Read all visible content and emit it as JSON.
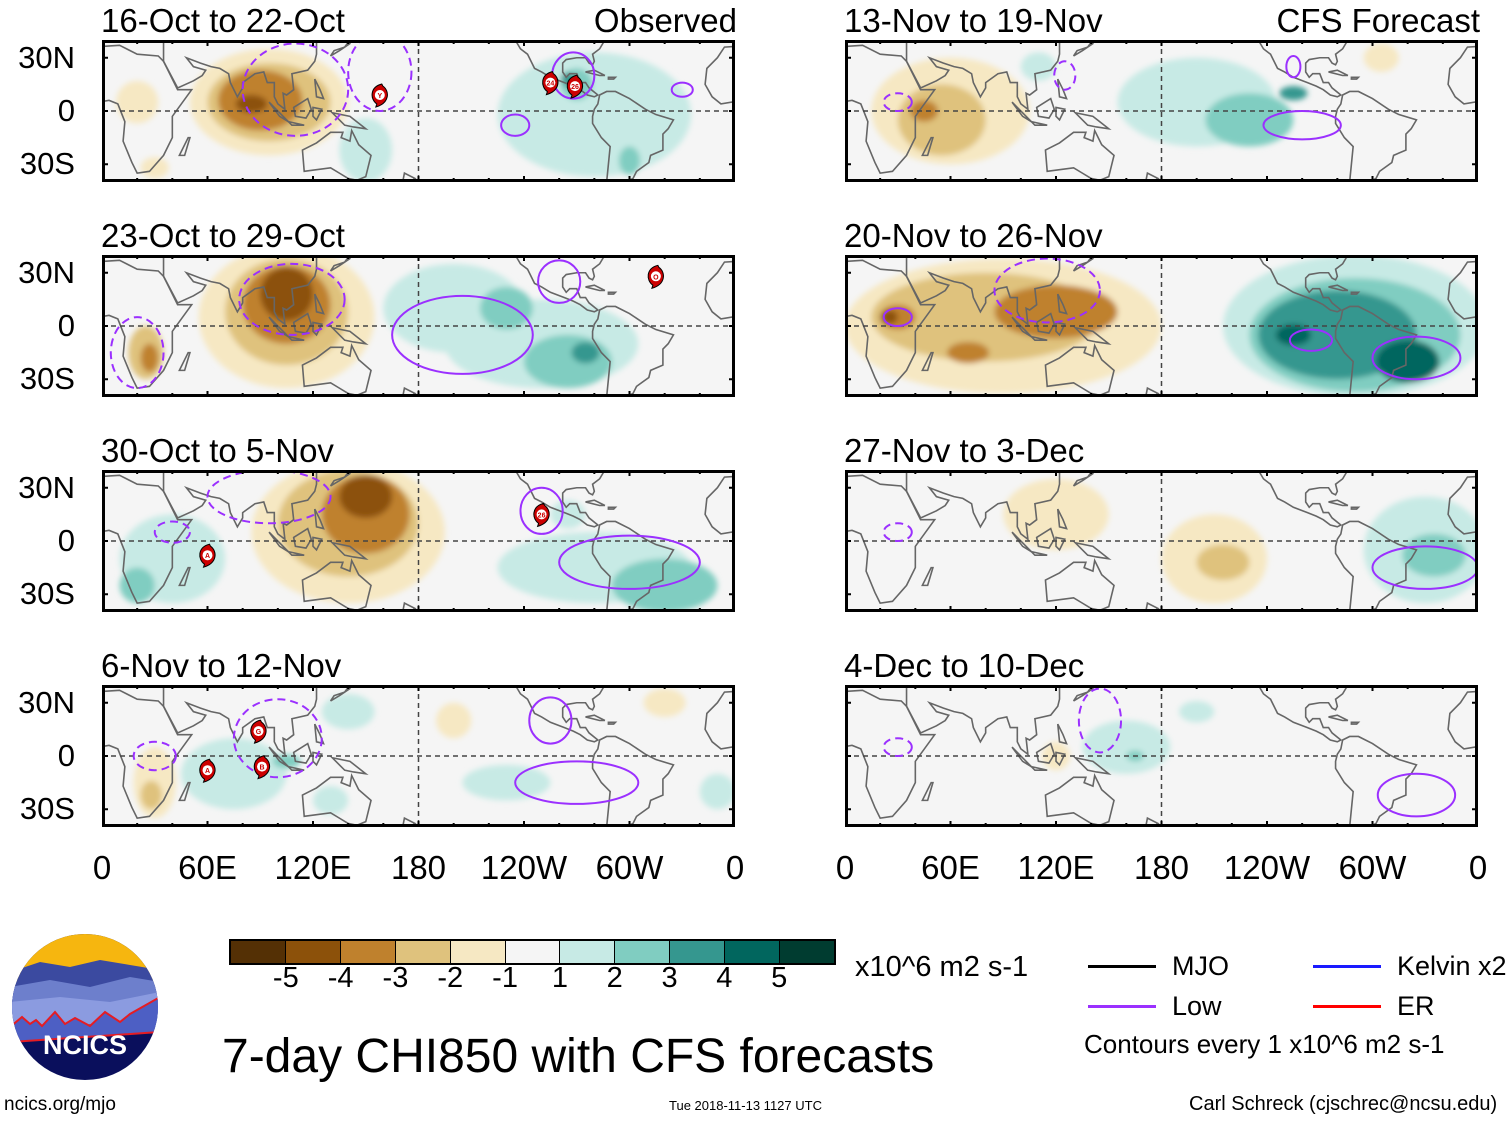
{
  "figure": {
    "main_title": "7-day CHI850 with CFS forecasts",
    "timestamp": "Tue 2018-11-13 1127 UTC",
    "website": "ncics.org/mjo",
    "logo_text": "NCICS",
    "author": "Carl Schreck (cjschrec@ncsu.edu)",
    "units": "x10^6 m2 s-1",
    "contour_note": "Contours every 1 x10^6 m2 s-1"
  },
  "legend": [
    {
      "label": "MJO",
      "color": "#000000"
    },
    {
      "label": "Kelvin x2",
      "color": "#1a1aff"
    },
    {
      "label": "Low",
      "color": "#9b30ff"
    },
    {
      "label": "ER",
      "color": "#ff0000"
    }
  ],
  "colorbar": {
    "labels": [
      "-5",
      "-4",
      "-3",
      "-2",
      "-1",
      "1",
      "2",
      "3",
      "4",
      "5"
    ],
    "colors": [
      "#543005",
      "#8c510a",
      "#bf812d",
      "#dfc27d",
      "#f6e8c3",
      "#f5f5f5",
      "#c7eae5",
      "#80cdc1",
      "#35978f",
      "#01665e",
      "#003c30"
    ]
  },
  "axes": {
    "lat_labels": [
      "30N",
      "0",
      "30S"
    ],
    "lat_values": [
      30,
      0,
      -30
    ],
    "lon_labels": [
      "0",
      "60E",
      "120E",
      "180",
      "120W",
      "60W",
      "0"
    ],
    "lon_values": [
      0,
      60,
      120,
      180,
      240,
      300,
      360
    ],
    "lat_range": [
      -40,
      40
    ],
    "lon_range": [
      0,
      360
    ]
  },
  "chart_data": [
    {
      "type": "heatmap",
      "title": "16-Oct to 22-Oct",
      "subtitle": "Observed",
      "anomaly_features": [
        [
          95,
          5,
          45,
          30,
          -1
        ],
        [
          95,
          5,
          35,
          22,
          -2
        ],
        [
          90,
          6,
          24,
          17,
          -3
        ],
        [
          85,
          4,
          9,
          5,
          -4
        ],
        [
          20,
          5,
          12,
          12,
          -1
        ],
        [
          30,
          -32,
          8,
          6,
          -1
        ],
        [
          280,
          -2,
          55,
          35,
          1
        ],
        [
          150,
          -22,
          15,
          18,
          1
        ],
        [
          270,
          15,
          9,
          9,
          2
        ],
        [
          265,
          18,
          4,
          4,
          3
        ],
        [
          300,
          -28,
          6,
          8,
          2
        ]
      ],
      "low_contours": [
        [
          110,
          12,
          30,
          26,
          true
        ],
        [
          158,
          22,
          18,
          22,
          true
        ],
        [
          268,
          20,
          12,
          13,
          false
        ],
        [
          235,
          -8,
          8,
          6,
          false
        ],
        [
          330,
          12,
          6,
          4,
          false
        ]
      ],
      "storms": [
        [
          158,
          9,
          "Y"
        ],
        [
          255,
          16,
          "24"
        ],
        [
          269,
          14,
          "26"
        ]
      ]
    },
    {
      "type": "heatmap",
      "title": "23-Oct to 29-Oct",
      "subtitle": "",
      "anomaly_features": [
        [
          105,
          5,
          50,
          40,
          -1
        ],
        [
          105,
          8,
          35,
          30,
          -2
        ],
        [
          105,
          12,
          25,
          22,
          -3
        ],
        [
          105,
          18,
          15,
          15,
          -4
        ],
        [
          25,
          -15,
          10,
          15,
          -2
        ],
        [
          27,
          -18,
          5,
          8,
          -3
        ],
        [
          200,
          10,
          40,
          25,
          1
        ],
        [
          250,
          -10,
          55,
          25,
          1
        ],
        [
          230,
          10,
          15,
          12,
          2
        ],
        [
          265,
          -20,
          25,
          15,
          2
        ],
        [
          275,
          -15,
          8,
          6,
          3
        ]
      ],
      "low_contours": [
        [
          108,
          15,
          30,
          20,
          true
        ],
        [
          260,
          25,
          12,
          12,
          false
        ],
        [
          205,
          -5,
          40,
          22,
          false
        ],
        [
          20,
          -15,
          15,
          20,
          true
        ]
      ],
      "storms": [
        [
          315,
          28,
          "O"
        ]
      ]
    },
    {
      "type": "heatmap",
      "title": "30-Oct to 5-Nov",
      "subtitle": "",
      "anomaly_features": [
        [
          140,
          5,
          55,
          40,
          -1
        ],
        [
          140,
          10,
          40,
          30,
          -2
        ],
        [
          150,
          15,
          25,
          22,
          -3
        ],
        [
          150,
          25,
          15,
          12,
          -4
        ],
        [
          40,
          -10,
          30,
          25,
          1
        ],
        [
          20,
          -25,
          10,
          10,
          2
        ],
        [
          280,
          -15,
          55,
          20,
          1
        ],
        [
          320,
          -25,
          30,
          15,
          2
        ],
        [
          265,
          15,
          10,
          8,
          1
        ]
      ],
      "low_contours": [
        [
          95,
          25,
          35,
          15,
          true
        ],
        [
          250,
          17,
          12,
          13,
          false
        ],
        [
          300,
          -12,
          40,
          15,
          false
        ],
        [
          40,
          5,
          10,
          6,
          true
        ]
      ],
      "storms": [
        [
          60,
          -8,
          "A"
        ],
        [
          250,
          15,
          "26"
        ]
      ]
    },
    {
      "type": "heatmap",
      "title": "6-Nov to 12-Nov",
      "subtitle": "",
      "anomaly_features": [
        [
          30,
          -15,
          12,
          20,
          -1
        ],
        [
          28,
          -22,
          6,
          8,
          -2
        ],
        [
          75,
          -10,
          30,
          20,
          1
        ],
        [
          105,
          -3,
          8,
          4,
          2
        ],
        [
          140,
          25,
          15,
          10,
          1
        ],
        [
          230,
          -15,
          25,
          10,
          1
        ],
        [
          350,
          -20,
          10,
          10,
          1
        ],
        [
          200,
          20,
          10,
          10,
          -1
        ],
        [
          320,
          30,
          12,
          8,
          -1
        ],
        [
          130,
          -25,
          10,
          8,
          1
        ]
      ],
      "low_contours": [
        [
          100,
          10,
          25,
          22,
          true
        ],
        [
          255,
          20,
          12,
          13,
          false
        ],
        [
          270,
          -15,
          35,
          12,
          false
        ],
        [
          30,
          0,
          12,
          8,
          true
        ]
      ],
      "storms": [
        [
          89,
          14,
          "G"
        ],
        [
          91,
          -6,
          "B"
        ],
        [
          60,
          -8,
          "A"
        ]
      ]
    },
    {
      "type": "heatmap",
      "title": "13-Nov to 19-Nov",
      "subtitle": "CFS Forecast",
      "anomaly_features": [
        [
          60,
          0,
          45,
          30,
          -1
        ],
        [
          55,
          -5,
          25,
          20,
          -2
        ],
        [
          45,
          0,
          8,
          6,
          -3
        ],
        [
          305,
          30,
          10,
          8,
          -1
        ],
        [
          200,
          5,
          45,
          25,
          1
        ],
        [
          230,
          -5,
          25,
          15,
          2
        ],
        [
          255,
          10,
          8,
          4,
          3
        ],
        [
          110,
          25,
          10,
          8,
          1
        ]
      ],
      "low_contours": [
        [
          260,
          -8,
          22,
          8,
          false
        ],
        [
          255,
          25,
          4,
          6,
          false
        ],
        [
          125,
          20,
          6,
          8,
          true
        ],
        [
          30,
          5,
          8,
          5,
          true
        ]
      ],
      "storms": []
    },
    {
      "type": "heatmap",
      "title": "20-Nov to 26-Nov",
      "subtitle": "",
      "anomaly_features": [
        [
          90,
          0,
          90,
          38,
          -1
        ],
        [
          80,
          5,
          65,
          25,
          -2
        ],
        [
          120,
          8,
          35,
          15,
          -3
        ],
        [
          30,
          5,
          10,
          7,
          -3
        ],
        [
          25,
          5,
          5,
          4,
          -4
        ],
        [
          70,
          -15,
          12,
          6,
          -3
        ],
        [
          290,
          0,
          75,
          40,
          1
        ],
        [
          290,
          -5,
          60,
          32,
          2
        ],
        [
          280,
          -5,
          45,
          25,
          3
        ],
        [
          320,
          -20,
          18,
          12,
          4
        ],
        [
          255,
          -5,
          10,
          6,
          4
        ]
      ],
      "low_contours": [
        [
          115,
          20,
          30,
          18,
          true
        ],
        [
          265,
          -8,
          12,
          6,
          false
        ],
        [
          325,
          -18,
          25,
          12,
          false
        ],
        [
          30,
          5,
          8,
          5,
          false
        ]
      ],
      "storms": []
    },
    {
      "type": "heatmap",
      "title": "27-Nov to 3-Dec",
      "subtitle": "",
      "anomaly_features": [
        [
          120,
          15,
          30,
          20,
          -1
        ],
        [
          210,
          -10,
          30,
          25,
          -1
        ],
        [
          215,
          -12,
          15,
          10,
          -2
        ],
        [
          330,
          -5,
          35,
          30,
          1
        ],
        [
          335,
          -8,
          18,
          12,
          2
        ]
      ],
      "low_contours": [
        [
          330,
          -15,
          30,
          12,
          false
        ],
        [
          30,
          5,
          8,
          5,
          true
        ]
      ],
      "storms": []
    },
    {
      "type": "heatmap",
      "title": "4-Dec to 10-Dec",
      "subtitle": "",
      "anomaly_features": [
        [
          160,
          5,
          25,
          15,
          1
        ],
        [
          165,
          0,
          5,
          3,
          2
        ],
        [
          120,
          0,
          8,
          8,
          -1
        ],
        [
          200,
          25,
          10,
          6,
          1
        ]
      ],
      "low_contours": [
        [
          145,
          20,
          12,
          18,
          true
        ],
        [
          325,
          -22,
          22,
          12,
          false
        ],
        [
          30,
          5,
          8,
          5,
          true
        ]
      ],
      "storms": []
    }
  ]
}
